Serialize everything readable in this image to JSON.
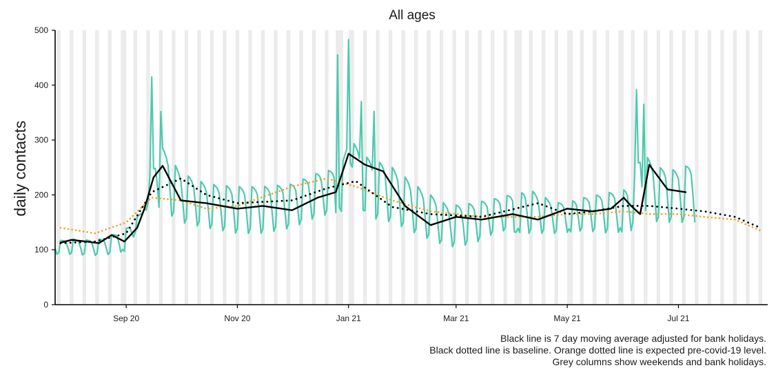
{
  "chart_data": {
    "type": "line",
    "title": "All ages",
    "ylabel": "daily contacts",
    "xlabel": "",
    "ylim": [
      0,
      500
    ],
    "x_range": [
      "2020-07-24",
      "2021-08-19"
    ],
    "yticks": [
      0,
      100,
      200,
      300,
      400,
      500
    ],
    "xticks": [
      {
        "date": "2020-09-01",
        "label": "Sep 20"
      },
      {
        "date": "2020-11-01",
        "label": "Nov 20"
      },
      {
        "date": "2021-01-01",
        "label": "Jan 21"
      },
      {
        "date": "2021-03-01",
        "label": "Mar 21"
      },
      {
        "date": "2021-05-01",
        "label": "May 21"
      },
      {
        "date": "2021-07-01",
        "label": "Jul 21"
      }
    ],
    "grid": false,
    "shaded_columns": "weekends and bank holidays",
    "bank_holidays": [
      "2020-08-31",
      "2020-12-25",
      "2020-12-28",
      "2021-01-01",
      "2021-04-02",
      "2021-04-05",
      "2021-05-03",
      "2021-05-31"
    ],
    "colors": {
      "daily": "#4dc9b0",
      "moving_average": "#000000",
      "baseline": "#000000",
      "expected": "#f0a020",
      "shading": "#ebebeb"
    },
    "series": [
      {
        "key": "daily",
        "style": "solid",
        "x": [
          "2020-07-24",
          "2020-08-01",
          "2020-08-10",
          "2020-08-20",
          "2020-09-01",
          "2020-09-10",
          "2020-09-14",
          "2020-09-20",
          "2020-10-01",
          "2020-10-15",
          "2020-11-01",
          "2020-11-15",
          "2020-12-01",
          "2020-12-15",
          "2020-12-28",
          "2021-01-01",
          "2021-01-10",
          "2021-01-25",
          "2021-02-10",
          "2021-02-25",
          "2021-03-10",
          "2021-03-25",
          "2021-04-10",
          "2021-04-25",
          "2021-05-10",
          "2021-05-25",
          "2021-06-05",
          "2021-06-10",
          "2021-06-20",
          "2021-06-30",
          "2021-07-10"
        ],
        "weekday": [
          115,
          120,
          118,
          120,
          140,
          170,
          235,
          290,
          240,
          220,
          215,
          215,
          220,
          240,
          250,
          305,
          270,
          250,
          210,
          180,
          185,
          195,
          210,
          185,
          195,
          205,
          215,
          280,
          250,
          245,
          260
        ],
        "weekend": [
          92,
          92,
          90,
          90,
          98,
          155,
          190,
          175,
          150,
          140,
          130,
          130,
          140,
          160,
          170,
          270,
          160,
          150,
          125,
          105,
          110,
          135,
          130,
          130,
          135,
          130,
          135,
          165,
          150,
          150,
          150
        ],
        "peaks": [
          {
            "x": "2020-09-15",
            "y": 415
          },
          {
            "x": "2020-09-20",
            "y": 352
          },
          {
            "x": "2020-12-26",
            "y": 455
          },
          {
            "x": "2021-01-01",
            "y": 483
          },
          {
            "x": "2021-01-08",
            "y": 370
          },
          {
            "x": "2021-01-15",
            "y": 352
          },
          {
            "x": "2021-06-08",
            "y": 392
          },
          {
            "x": "2021-06-12",
            "y": 365
          }
        ]
      },
      {
        "key": "moving_average",
        "style": "solid",
        "x": [
          "2020-07-27",
          "2020-08-02",
          "2020-08-10",
          "2020-08-17",
          "2020-08-24",
          "2020-08-31",
          "2020-09-07",
          "2020-09-11",
          "2020-09-16",
          "2020-09-21",
          "2020-10-01",
          "2020-10-15",
          "2020-11-01",
          "2020-11-15",
          "2020-12-01",
          "2020-12-15",
          "2020-12-25",
          "2021-01-01",
          "2021-01-10",
          "2021-01-20",
          "2021-02-01",
          "2021-02-15",
          "2021-03-01",
          "2021-03-15",
          "2021-04-01",
          "2021-04-15",
          "2021-05-01",
          "2021-05-15",
          "2021-05-25",
          "2021-06-01",
          "2021-06-05",
          "2021-06-10",
          "2021-06-15",
          "2021-06-25",
          "2021-07-05"
        ],
        "y": [
          113,
          118,
          115,
          112,
          127,
          115,
          140,
          175,
          232,
          253,
          190,
          185,
          175,
          180,
          172,
          195,
          205,
          275,
          255,
          243,
          180,
          145,
          160,
          155,
          165,
          155,
          175,
          170,
          175,
          195,
          180,
          165,
          255,
          210,
          205
        ]
      },
      {
        "key": "baseline",
        "style": "dotted",
        "x": [
          "2020-07-27",
          "2020-08-15",
          "2020-09-01",
          "2020-09-15",
          "2020-10-01",
          "2020-10-15",
          "2020-11-01",
          "2020-12-01",
          "2020-12-20",
          "2021-01-05",
          "2021-01-25",
          "2021-02-15",
          "2021-03-15",
          "2021-04-15",
          "2021-05-01",
          "2021-05-15",
          "2021-06-01",
          "2021-06-15",
          "2021-07-01",
          "2021-07-15",
          "2021-08-01",
          "2021-08-15"
        ],
        "y": [
          112,
          115,
          130,
          205,
          230,
          200,
          185,
          190,
          212,
          225,
          178,
          165,
          160,
          185,
          165,
          170,
          180,
          180,
          175,
          170,
          160,
          140
        ]
      },
      {
        "key": "expected",
        "style": "dotted",
        "x": [
          "2020-07-27",
          "2020-08-15",
          "2020-09-01",
          "2020-09-15",
          "2020-10-01",
          "2020-10-15",
          "2020-11-01",
          "2020-12-01",
          "2020-12-20",
          "2021-01-05",
          "2021-01-25",
          "2021-02-15",
          "2021-03-15",
          "2021-04-15",
          "2021-05-01",
          "2021-05-15",
          "2021-06-01",
          "2021-06-15",
          "2021-07-01",
          "2021-07-15",
          "2021-08-01",
          "2021-08-15"
        ],
        "y": [
          140,
          130,
          150,
          195,
          190,
          175,
          180,
          215,
          230,
          215,
          190,
          170,
          160,
          160,
          165,
          165,
          170,
          165,
          165,
          160,
          155,
          135
        ]
      }
    ]
  },
  "caption": [
    "Black line is 7 day moving average adjusted for bank holidays.",
    "Black dotted line is baseline. Orange dotted line is expected pre-covid-19 level.",
    "Grey columns show weekends and bank holidays."
  ]
}
